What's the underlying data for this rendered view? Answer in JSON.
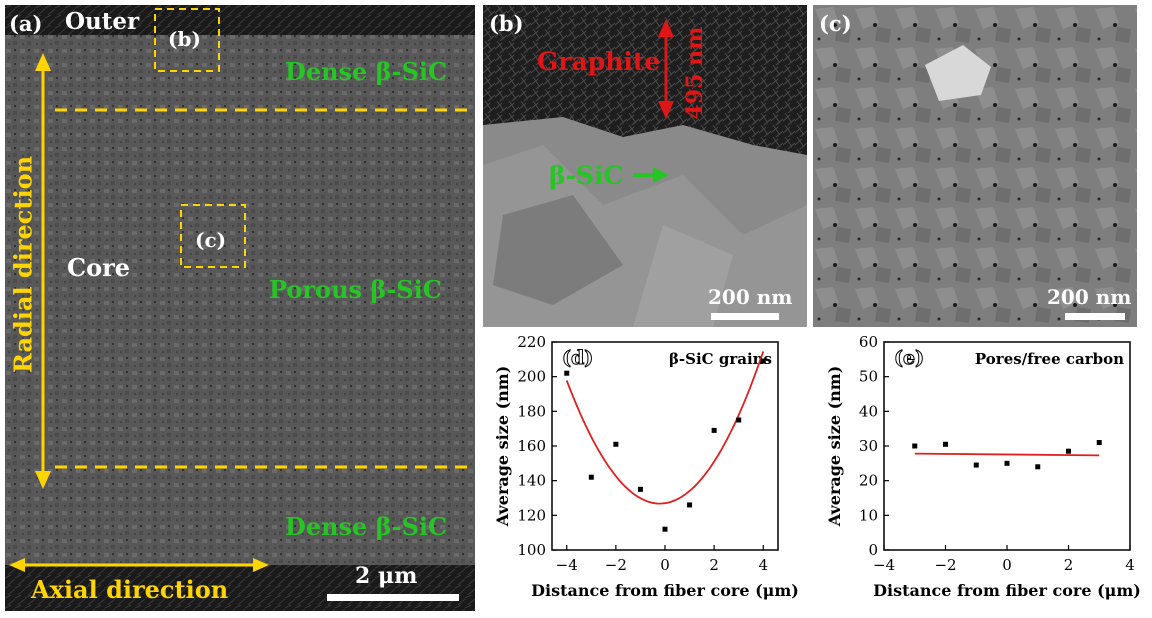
{
  "panel_a": {
    "label": "(a)",
    "outer": "Outer",
    "inset_b": "(b)",
    "inset_c": "(c)",
    "dense_top": "Dense β-SiC",
    "porous": "Porous β-SiC",
    "dense_bottom": "Dense β-SiC",
    "core": "Core",
    "radial": "Radial direction",
    "axial": "Axial direction",
    "scale": "2 μm"
  },
  "panel_b": {
    "label": "(b)",
    "graphite": "Graphite",
    "thickness": "495 nm",
    "sic": "β-SiC",
    "scale": "200 nm"
  },
  "panel_c": {
    "label": "(c)",
    "scale": "200 nm"
  },
  "chart_data": [
    {
      "type": "scatter",
      "panel": "(d)",
      "title": "β-SiC grains",
      "xlabel": "Distance from fiber core (μm)",
      "ylabel": "Average size (nm)",
      "xlim": [
        -4.6,
        4.6
      ],
      "ylim": [
        100,
        220
      ],
      "xticks": [
        -4,
        -2,
        0,
        2,
        4
      ],
      "yticks": [
        100,
        120,
        140,
        160,
        180,
        200,
        220
      ],
      "x": [
        -4,
        -3,
        -2,
        -1,
        0,
        1,
        2,
        3,
        4
      ],
      "y": [
        202,
        142,
        161,
        135,
        112,
        126,
        169,
        175,
        209
      ],
      "fit_color": "#e02020",
      "fit": {
        "type": "quadratic",
        "a": 4.95,
        "b": 2.1,
        "c": 127
      }
    },
    {
      "type": "scatter",
      "panel": "(e)",
      "title": "Pores/free carbon",
      "xlabel": "Distance from fiber core (μm)",
      "ylabel": "Average size (nm)",
      "xlim": [
        -4,
        4
      ],
      "ylim": [
        0,
        60
      ],
      "xticks": [
        -4,
        -2,
        0,
        2,
        4
      ],
      "yticks": [
        0,
        10,
        20,
        30,
        40,
        50,
        60
      ],
      "x": [
        -3,
        -2,
        -1,
        0,
        1,
        2,
        3
      ],
      "y": [
        30,
        30.5,
        24.5,
        25,
        24,
        28.5,
        31
      ],
      "fit_color": "#e02020",
      "fit": {
        "type": "linear",
        "x0": -3,
        "y0": 27.8,
        "x1": 3,
        "y1": 27.3
      }
    }
  ]
}
